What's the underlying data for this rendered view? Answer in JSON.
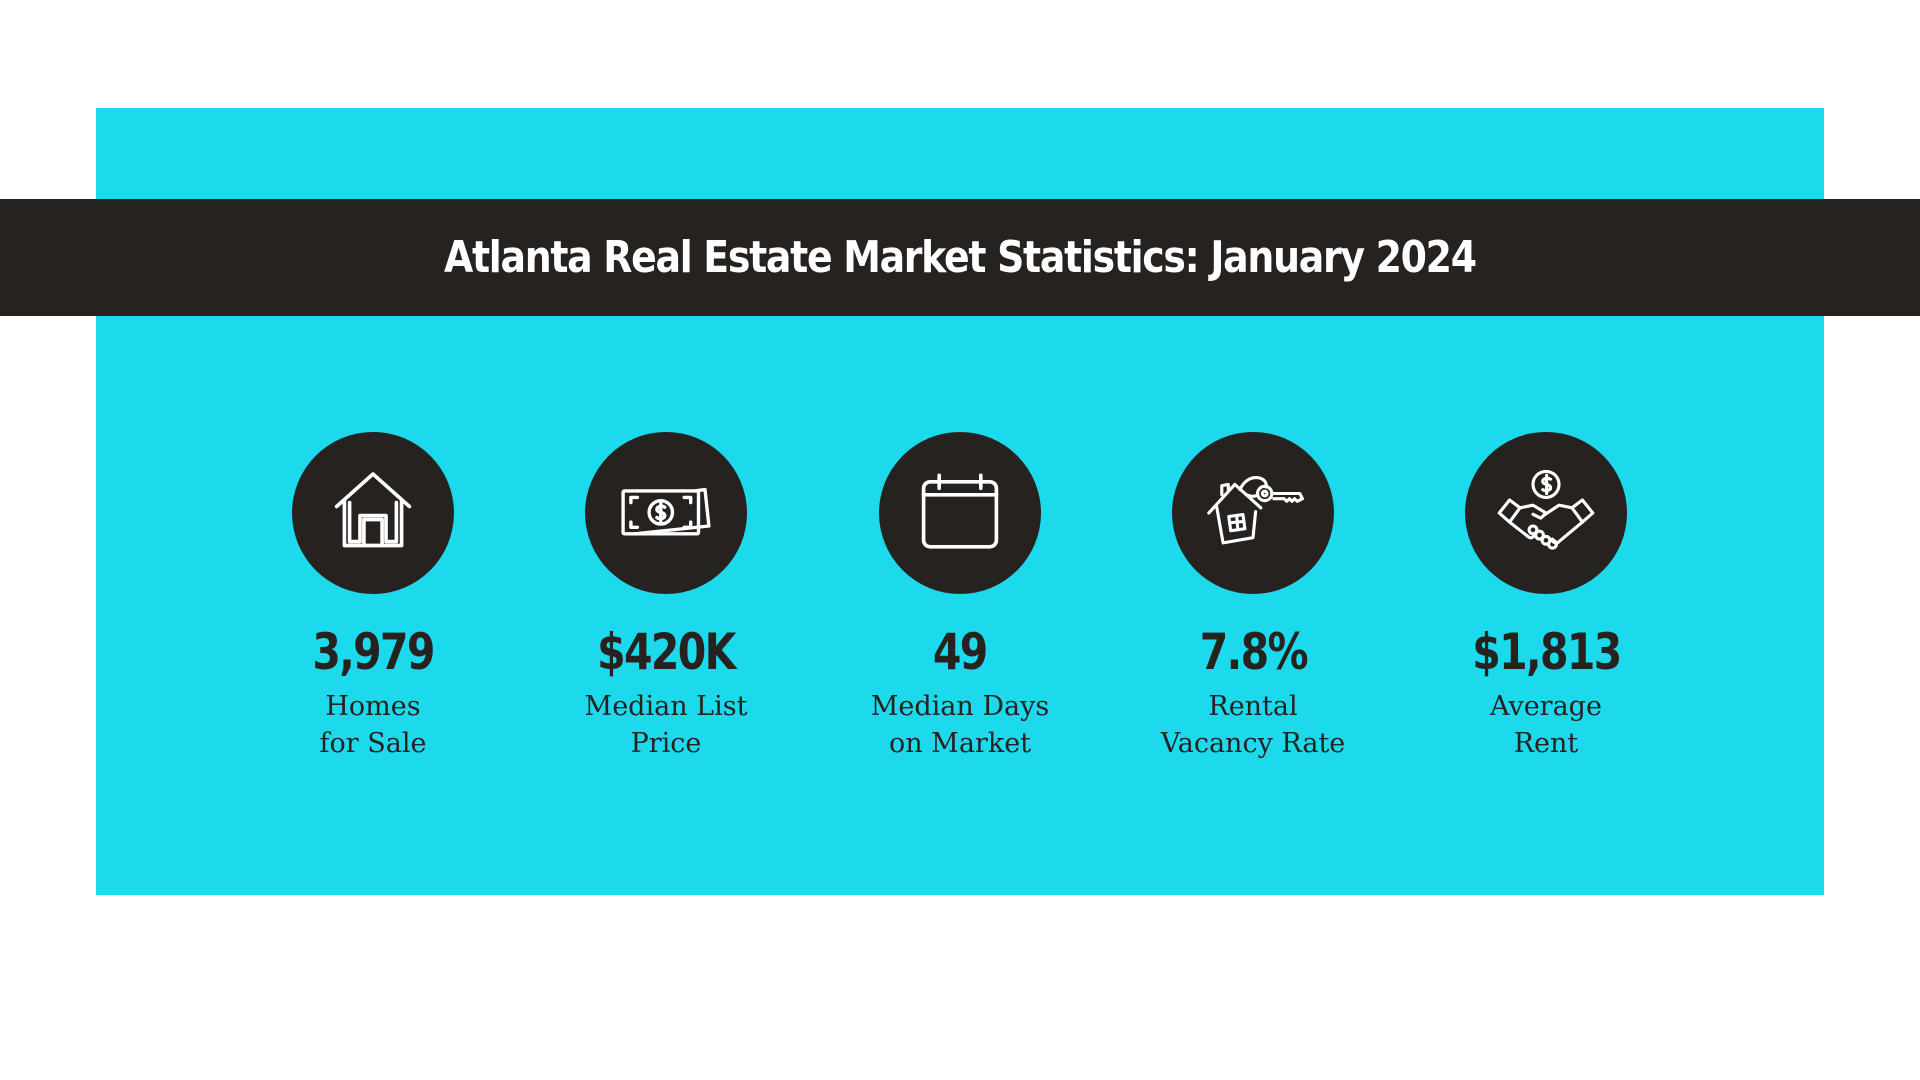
{
  "banner": {
    "title": "Atlanta Real Estate Market Statistics: January 2024"
  },
  "colors": {
    "panel": "#1cd9eb",
    "dark": "#262220",
    "background": "#ffffff",
    "icon_stroke": "#ffffff"
  },
  "stats": [
    {
      "value": "3,979",
      "label_line1": "Homes",
      "label_line2": "for Sale",
      "icon": "house-icon"
    },
    {
      "value": "$420K",
      "label_line1": "Median List",
      "label_line2": "Price",
      "icon": "money-bills-icon"
    },
    {
      "value": "49",
      "label_line1": "Median Days",
      "label_line2": "on Market",
      "icon": "calendar-icon"
    },
    {
      "value": "7.8%",
      "label_line1": "Rental",
      "label_line2": "Vacancy Rate",
      "icon": "house-key-icon"
    },
    {
      "value": "$1,813",
      "label_line1": "Average",
      "label_line2": "Rent",
      "icon": "handshake-dollar-icon"
    }
  ]
}
